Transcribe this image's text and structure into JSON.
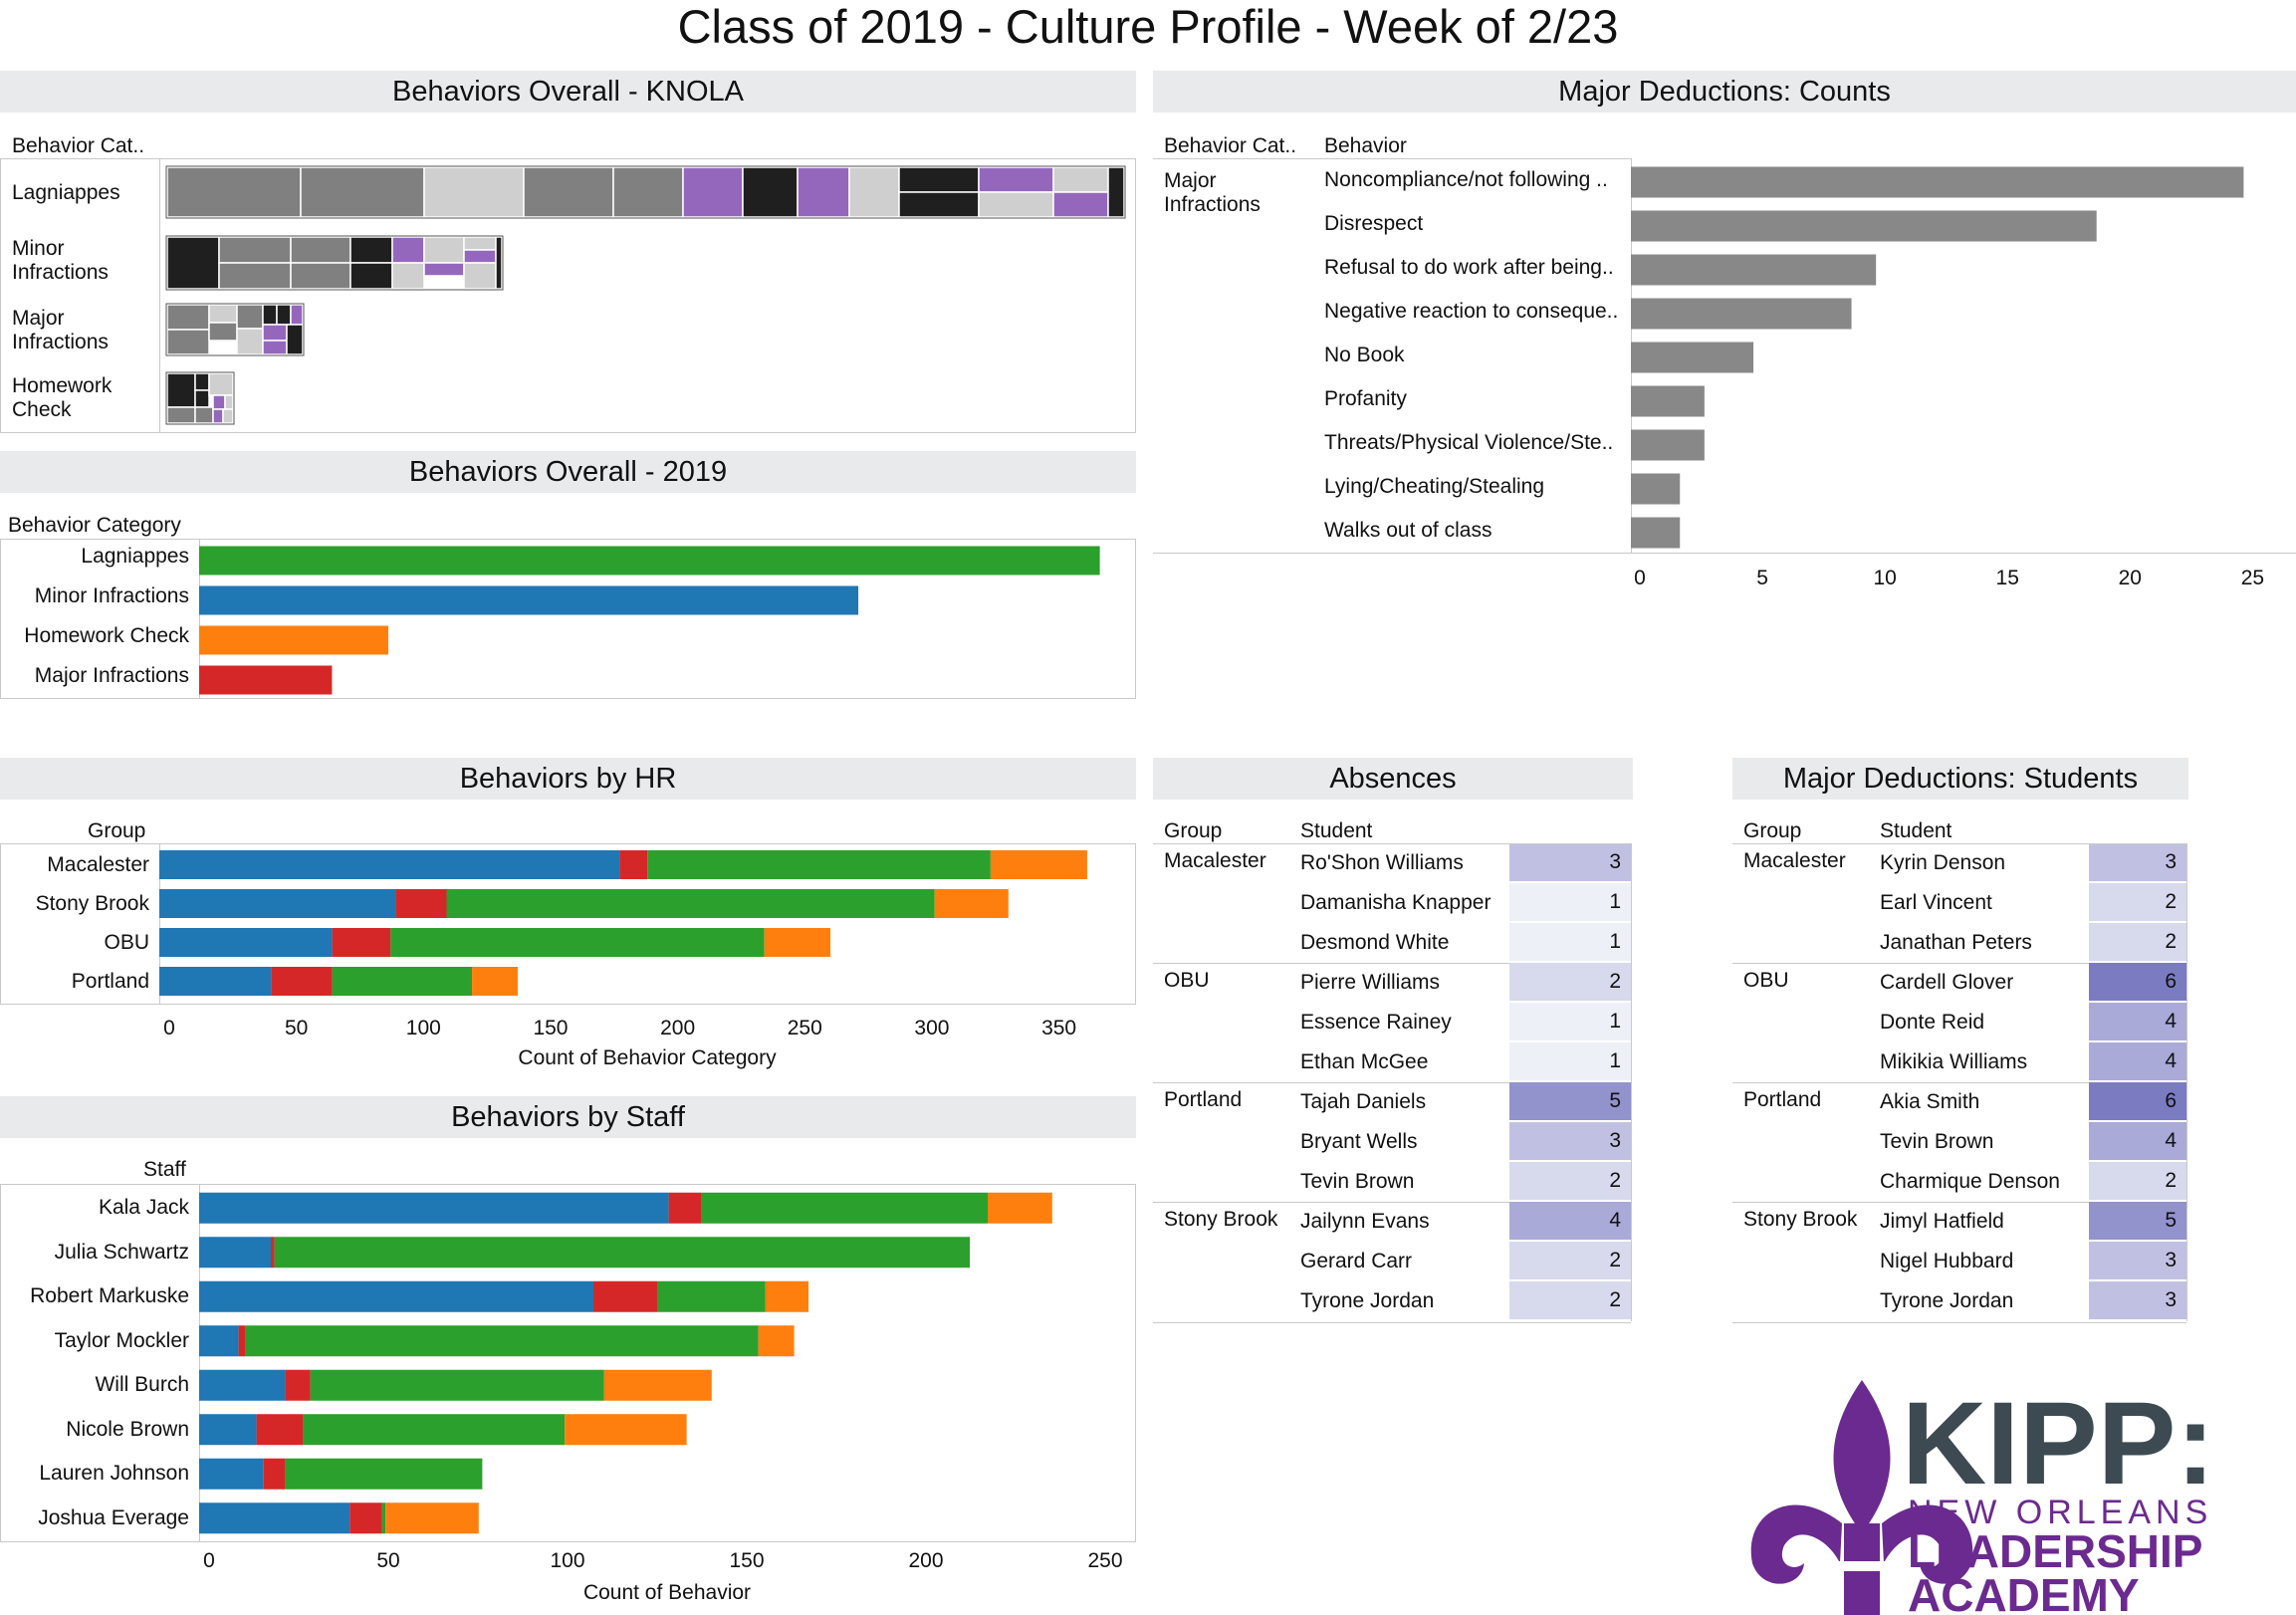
{
  "title": "Class of 2019 - Culture Profile - Week of 2/23",
  "colors": {
    "blue": "#1f77b4",
    "red": "#d62728",
    "green": "#2ca02c",
    "orange": "#ff7f0e",
    "bar_gray": "#888888",
    "band_gray": "#e9eaec",
    "purple": "#9467bd",
    "heat_low": "#eef0f8",
    "heat_high": "#7b7bc2"
  },
  "panels": {
    "knola": {
      "title": "Behaviors Overall - KNOLA",
      "header": "Behavior Cat..",
      "rows": [
        "Lagniappes",
        "Minor\nInfractions",
        "Major\nInfractions",
        "Homework\nCheck"
      ]
    },
    "overall2019": {
      "title": "Behaviors Overall - 2019",
      "header": "Behavior Category"
    },
    "major_counts": {
      "title": "Major Deductions: Counts",
      "header_cat": "Behavior Cat..",
      "header_beh": "Behavior",
      "category": "Major\nInfractions"
    },
    "by_hr": {
      "title": "Behaviors by HR",
      "header": "Group"
    },
    "by_staff": {
      "title": "Behaviors by Staff",
      "header": "Staff"
    },
    "absences": {
      "title": "Absences",
      "header_group": "Group",
      "header_student": "Student",
      "rows": [
        {
          "group": "Macalester",
          "student": "Ro'Shon Williams",
          "value": 3
        },
        {
          "group": "",
          "student": "Damanisha Knapper",
          "value": 1
        },
        {
          "group": "",
          "student": "Desmond White",
          "value": 1
        },
        {
          "group": "OBU",
          "student": "Pierre Williams",
          "value": 2
        },
        {
          "group": "",
          "student": "Essence Rainey",
          "value": 1
        },
        {
          "group": "",
          "student": "Ethan McGee",
          "value": 1
        },
        {
          "group": "Portland",
          "student": "Tajah Daniels",
          "value": 5
        },
        {
          "group": "",
          "student": "Bryant Wells",
          "value": 3
        },
        {
          "group": "",
          "student": "Tevin Brown",
          "value": 2
        },
        {
          "group": "Stony Brook",
          "student": "Jailynn Evans",
          "value": 4
        },
        {
          "group": "",
          "student": "Gerard Carr",
          "value": 2
        },
        {
          "group": "",
          "student": "Tyrone Jordan",
          "value": 2
        }
      ]
    },
    "major_students": {
      "title": "Major Deductions: Students",
      "header_group": "Group",
      "header_student": "Student",
      "rows": [
        {
          "group": "Macalester",
          "student": "Kyrin Denson",
          "value": 3
        },
        {
          "group": "",
          "student": "Earl Vincent",
          "value": 2
        },
        {
          "group": "",
          "student": "Janathan Peters",
          "value": 2
        },
        {
          "group": "OBU",
          "student": "Cardell Glover",
          "value": 6
        },
        {
          "group": "",
          "student": "Donte Reid",
          "value": 4
        },
        {
          "group": "",
          "student": "Mikikia Williams",
          "value": 4
        },
        {
          "group": "Portland",
          "student": "Akia Smith",
          "value": 6
        },
        {
          "group": "",
          "student": "Tevin Brown",
          "value": 4
        },
        {
          "group": "",
          "student": "Charmique Denson",
          "value": 2
        },
        {
          "group": "Stony Brook",
          "student": "Jimyl Hatfield",
          "value": 5
        },
        {
          "group": "",
          "student": "Nigel Hubbard",
          "value": 3
        },
        {
          "group": "",
          "student": "Tyrone Jordan",
          "value": 3
        }
      ]
    }
  },
  "logo": {
    "line1": "KIPP:",
    "line2": "NEW ORLEANS",
    "line3": "LEADERSHIP",
    "line4": "ACADEMY"
  },
  "chart_data": [
    {
      "id": "overall2019",
      "type": "bar",
      "orientation": "horizontal",
      "categories": [
        "Lagniappes",
        "Minor Infractions",
        "Homework Check",
        "Major Infractions"
      ],
      "values": [
        895,
        655,
        188,
        132
      ],
      "colors": [
        "green",
        "blue",
        "orange",
        "red"
      ],
      "xlim": [
        0,
        930
      ],
      "show_axis": false
    },
    {
      "id": "major_counts",
      "type": "bar",
      "orientation": "horizontal",
      "categories": [
        "Noncompliance/not following ..",
        "Disrespect",
        "Refusal to do work after being..",
        "Negative reaction to conseque..",
        "No Book",
        "Profanity",
        "Threats/Physical Violence/Ste..",
        "Lying/Cheating/Stealing",
        "Walks out of class"
      ],
      "values": [
        25,
        19,
        10,
        9,
        5,
        3,
        3,
        2,
        2
      ],
      "xlim": [
        0,
        26
      ],
      "ticks": [
        0,
        5,
        10,
        15,
        20,
        25
      ],
      "xlabel": ""
    },
    {
      "id": "by_hr",
      "type": "bar",
      "orientation": "horizontal",
      "stacked": true,
      "categories": [
        "Macalester",
        "Stony Brook",
        "OBU",
        "Portland"
      ],
      "series": [
        {
          "color": "blue",
          "values": [
            181,
            93,
            68,
            44
          ]
        },
        {
          "color": "red",
          "values": [
            11,
            20,
            23,
            24
          ]
        },
        {
          "color": "green",
          "values": [
            135,
            192,
            147,
            55
          ]
        },
        {
          "color": "orange",
          "values": [
            38,
            29,
            26,
            18
          ]
        }
      ],
      "xlim": [
        0,
        380
      ],
      "ticks": [
        0,
        50,
        100,
        150,
        200,
        250,
        300,
        350
      ],
      "xlabel": "Count of Behavior Category"
    },
    {
      "id": "by_staff",
      "type": "bar",
      "orientation": "horizontal",
      "stacked": true,
      "categories": [
        "Kala Jack",
        "Julia Schwartz",
        "Robert Markuske",
        "Taylor Mockler",
        "Will Burch",
        "Nicole Brown",
        "Lauren Johnson",
        "Joshua Everage"
      ],
      "series": [
        {
          "color": "blue",
          "values": [
            131,
            20,
            110,
            11,
            24,
            16,
            18,
            42
          ]
        },
        {
          "color": "red",
          "values": [
            9,
            1,
            18,
            2,
            7,
            13,
            6,
            9
          ]
        },
        {
          "color": "green",
          "values": [
            80,
            194,
            30,
            143,
            82,
            73,
            55,
            1
          ]
        },
        {
          "color": "orange",
          "values": [
            18,
            0,
            12,
            10,
            30,
            34,
            0,
            26
          ]
        }
      ],
      "xlim": [
        0,
        250
      ],
      "ticks": [
        0,
        50,
        100,
        150,
        200,
        250
      ],
      "xlabel": "Count of Behavior"
    }
  ]
}
